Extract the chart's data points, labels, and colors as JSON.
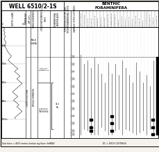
{
  "title": "WELL 6510/2-1S",
  "benthic_header": "BENTHIC\nFORAMINIFERA",
  "bg_color": "#f5f2ed",
  "depth_min": 500,
  "depth_max": 1100,
  "depth_ticks": [
    500,
    600,
    700,
    800,
    900,
    1000,
    1100
  ],
  "depth_tick_labels": [
    "",
    "600m",
    "700m",
    "800m",
    "900m",
    "1000m",
    ""
  ],
  "series_label": "LOWER OLIGOCENE",
  "formation_label": "BRYGGE FORMATION",
  "assemblage1": "TURRILINA\nALSATICA\nASSEMBLAGE",
  "assemblage2": "G. SOLDANII\nGYMNADANA-\nROTALIATINA\nBULIMOIDES\nASSEMBLAGE",
  "molo_forma": "MOLO\nFORMA",
  "age_label": "32.2\nMa",
  "footer": "Sea floor = 430 meters below rig floor (mRKB)",
  "dc_label": "DC = DITCH CUTTINGS",
  "dashed_line_depth": 660,
  "assemblage_boundary_depth": 800,
  "foram_species": [
    "ANOMALINOIDES SP.",
    "ASTRONONION SP.",
    "BOLIVINA SP.",
    "BULIMINA SP.",
    "CASSIDULINA SP.",
    "CIBICIDES SP.",
    "DENTALINA SP.",
    "ELPHIDIUM SP.",
    "EPISTOMINELLA SP.",
    "GLOBOBULIMINA SP.",
    "GYROIDINOIDES SP.",
    "LAGENA SP.",
    "LENTICULINA SP.",
    "MELONIS SP.",
    "NODOSARIA SP.",
    "NONION SP.",
    "ORIDORSALIS SP.",
    "PULLENIA SP.",
    "PYRGO SP.",
    "QUINQUELOCULINA SP.",
    "ROTALIAMMINA SP.",
    "UVIGERINA SP.",
    "VALVULINERIA SP."
  ],
  "foram_ranges": [
    [
      650,
      1080
    ],
    [
      700,
      1050
    ],
    [
      680,
      1060
    ],
    [
      720,
      1080
    ],
    [
      660,
      1080
    ],
    [
      700,
      1080
    ],
    [
      750,
      1040
    ],
    [
      800,
      1060
    ],
    [
      690,
      1080
    ],
    [
      750,
      1080
    ],
    [
      700,
      1060
    ],
    [
      760,
      1050
    ],
    [
      680,
      1080
    ],
    [
      720,
      1050
    ],
    [
      760,
      1060
    ],
    [
      800,
      1070
    ],
    [
      690,
      1080
    ],
    [
      740,
      1070
    ],
    [
      800,
      1060
    ],
    [
      760,
      1080
    ],
    [
      820,
      1050
    ],
    [
      680,
      1080
    ],
    [
      720,
      1070
    ]
  ],
  "black_bar_species": [
    3,
    9,
    21
  ],
  "black_bar_depths": {
    "3": [
      1000,
      1040,
      1060
    ],
    "9": [
      980,
      1020,
      1060
    ],
    "21": [
      1000,
      1040,
      1080
    ]
  },
  "sample_depths": [
    660,
    700,
    740,
    780,
    820,
    860,
    900,
    940,
    980,
    1020,
    1060,
    1080
  ],
  "gamma_x": [
    0,
    5,
    8,
    6,
    4,
    7,
    10,
    8,
    6,
    9,
    12,
    10,
    8,
    6,
    9,
    11,
    13,
    15,
    12,
    10,
    8,
    10,
    12,
    15,
    18,
    20,
    22,
    25,
    28,
    30,
    35,
    40,
    38,
    35,
    30,
    28,
    25,
    30,
    35,
    40,
    45,
    50,
    55,
    60,
    65,
    70,
    65,
    60,
    55,
    60,
    65,
    70,
    75,
    80,
    75,
    70,
    65,
    70,
    75,
    80,
    85,
    90,
    85,
    80,
    75,
    70,
    65,
    60,
    55,
    50,
    45,
    50,
    55,
    60,
    65,
    70,
    65,
    60,
    55,
    50,
    55,
    60,
    65,
    70,
    75,
    70,
    65,
    70,
    75,
    80,
    85,
    90,
    85,
    80,
    75,
    70,
    65,
    60,
    55,
    60
  ],
  "gamma_depths": [
    500,
    505,
    510,
    515,
    520,
    525,
    530,
    535,
    540,
    545,
    550,
    555,
    560,
    565,
    570,
    575,
    580,
    585,
    590,
    595,
    600,
    605,
    610,
    615,
    620,
    625,
    630,
    635,
    640,
    645,
    650,
    655,
    660,
    665,
    670,
    675,
    680,
    685,
    690,
    695,
    700,
    705,
    710,
    715,
    720,
    725,
    730,
    735,
    740,
    745,
    750,
    755,
    760,
    765,
    770,
    775,
    780,
    785,
    790,
    795,
    800,
    805,
    810,
    815,
    820,
    825,
    830,
    835,
    840,
    845,
    850,
    855,
    860,
    865,
    870,
    875,
    880,
    885,
    890,
    895,
    900,
    905,
    910,
    915,
    920,
    925,
    930,
    935,
    940,
    945,
    950,
    955,
    960,
    965,
    970,
    975,
    980,
    985,
    990,
    995
  ]
}
